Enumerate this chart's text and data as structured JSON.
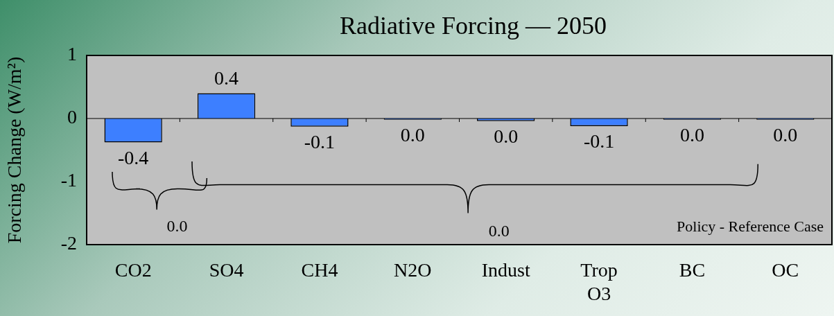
{
  "chart_data": {
    "type": "bar",
    "title": "Radiative Forcing — 2050",
    "ylabel": "Forcing Change (W/m²)",
    "categories": [
      "CO2",
      "SO4",
      "CH4",
      "N2O",
      "Indust",
      "Trop O3",
      "BC",
      "OC"
    ],
    "values": [
      -0.38,
      0.4,
      -0.13,
      -0.02,
      -0.04,
      -0.12,
      -0.02,
      -0.02
    ],
    "value_labels": [
      "-0.4",
      "0.4",
      "-0.1",
      "0.0",
      "0.0",
      "-0.1",
      "0.0",
      "0.0"
    ],
    "color": "#3d7fff",
    "ylim": [
      -2,
      1
    ],
    "yticks": [
      -2,
      -1,
      0,
      1
    ],
    "grid": false,
    "ref_lines": [
      {
        "axis": "y",
        "value": 0
      }
    ],
    "annotations": [
      "0.0",
      "0.0",
      "Policy - Reference Case"
    ]
  }
}
